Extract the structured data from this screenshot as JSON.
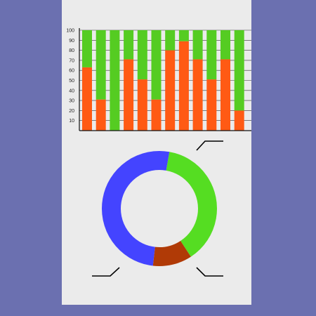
{
  "colors": {
    "page_background": "#6b70b0",
    "sheet": "#ebebeb",
    "bar_top": "#55cc22",
    "bar_bottom": "#ff5a14",
    "axis": "#111111"
  },
  "chart_data": [
    {
      "type": "bar",
      "stacked": true,
      "categories": [
        "",
        "",
        "",
        "",
        "",
        "",
        "",
        "",
        "",
        "",
        "",
        ""
      ],
      "series": [
        {
          "color": "#ff5a14",
          "values": [
            63,
            31,
            0,
            71,
            51,
            31,
            80,
            89,
            71,
            51,
            71,
            20
          ]
        },
        {
          "color": "#55cc22",
          "values": [
            37,
            69,
            100,
            29,
            49,
            69,
            20,
            11,
            29,
            49,
            29,
            80
          ]
        }
      ],
      "yticks": [
        "10",
        "20",
        "30",
        "40",
        "50",
        "60",
        "70",
        "80",
        "90",
        "100"
      ],
      "ylim": [
        0,
        100
      ],
      "grid": true
    },
    {
      "type": "pie",
      "style": "donut",
      "slices": [
        {
          "value": 38,
          "color": "#55dd22"
        },
        {
          "value": 11,
          "color": "#b03a06"
        },
        {
          "value": 51,
          "color": "#4444ff"
        }
      ]
    }
  ],
  "callouts": [
    {
      "name": "top-right",
      "color": "#000000"
    },
    {
      "name": "bottom-left",
      "color": "#000000"
    },
    {
      "name": "bottom-right",
      "color": "#000000"
    }
  ]
}
